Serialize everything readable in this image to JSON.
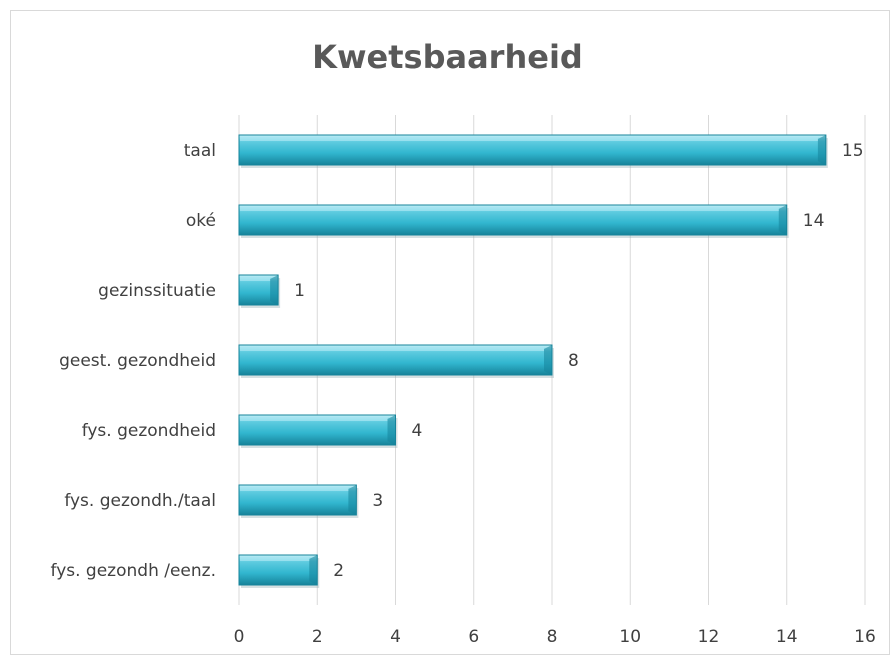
{
  "chart_data": {
    "type": "bar",
    "orientation": "horizontal",
    "title": "Kwetsbaarheid",
    "categories": [
      "taal",
      "oké",
      "gezinssituatie",
      "geest. gezondheid",
      "fys. gezondheid",
      "fys. gezondh./taal",
      "fys. gezondh /eenz."
    ],
    "values": [
      15,
      14,
      1,
      8,
      4,
      3,
      2
    ],
    "xlim": [
      0,
      16
    ],
    "xticks": [
      "0",
      "2",
      "4",
      "6",
      "8",
      "10",
      "12",
      "14",
      "16"
    ],
    "xlabel": "",
    "ylabel": "",
    "grid": true,
    "legend": "none",
    "data_labels": true,
    "bar_color": "#31b6cf",
    "bar_shade": "#16839a",
    "bar_highlight": "#a9e6f2"
  }
}
